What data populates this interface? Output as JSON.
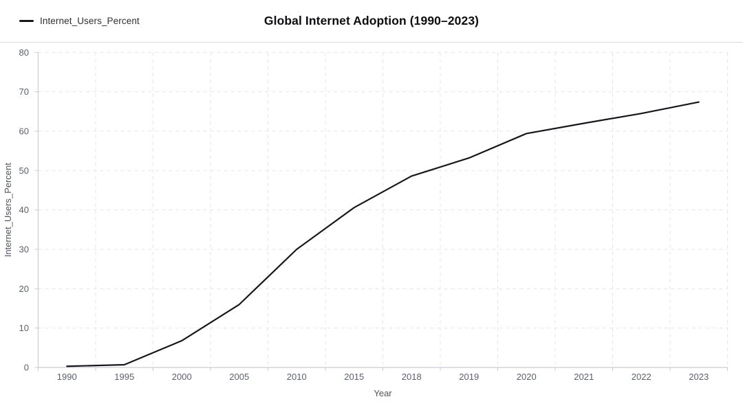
{
  "header": {
    "legend": {
      "label": "Internet_Users_Percent",
      "swatch_color": "#15171c"
    },
    "title": "Global Internet Adoption (1990–2023)"
  },
  "chart_data": {
    "type": "line",
    "x": [
      "1990",
      "1995",
      "2000",
      "2005",
      "2010",
      "2015",
      "2018",
      "2019",
      "2020",
      "2021",
      "2022",
      "2023"
    ],
    "series": [
      {
        "name": "Internet_Users_Percent",
        "color": "#15171c",
        "values": [
          0.3,
          0.7,
          6.8,
          16.0,
          30.0,
          40.6,
          48.6,
          53.2,
          59.4,
          62.0,
          64.5,
          67.4
        ]
      }
    ],
    "title": "Global Internet Adoption (1990–2023)",
    "xlabel": "Year",
    "ylabel": "Internet_Users_Percent",
    "ylim": [
      0,
      80
    ],
    "yticks": [
      0,
      10,
      20,
      30,
      40,
      50,
      60,
      70,
      80
    ],
    "grid": "dashed",
    "legend_position": "top-left",
    "colors": {
      "grid": "#e3e5ea",
      "axis": "#c9ccd3",
      "tick_text": "#5a5f6a",
      "axis_label_text": "#4d525c",
      "separator": "#d9dbdf",
      "background": "#ffffff"
    }
  }
}
